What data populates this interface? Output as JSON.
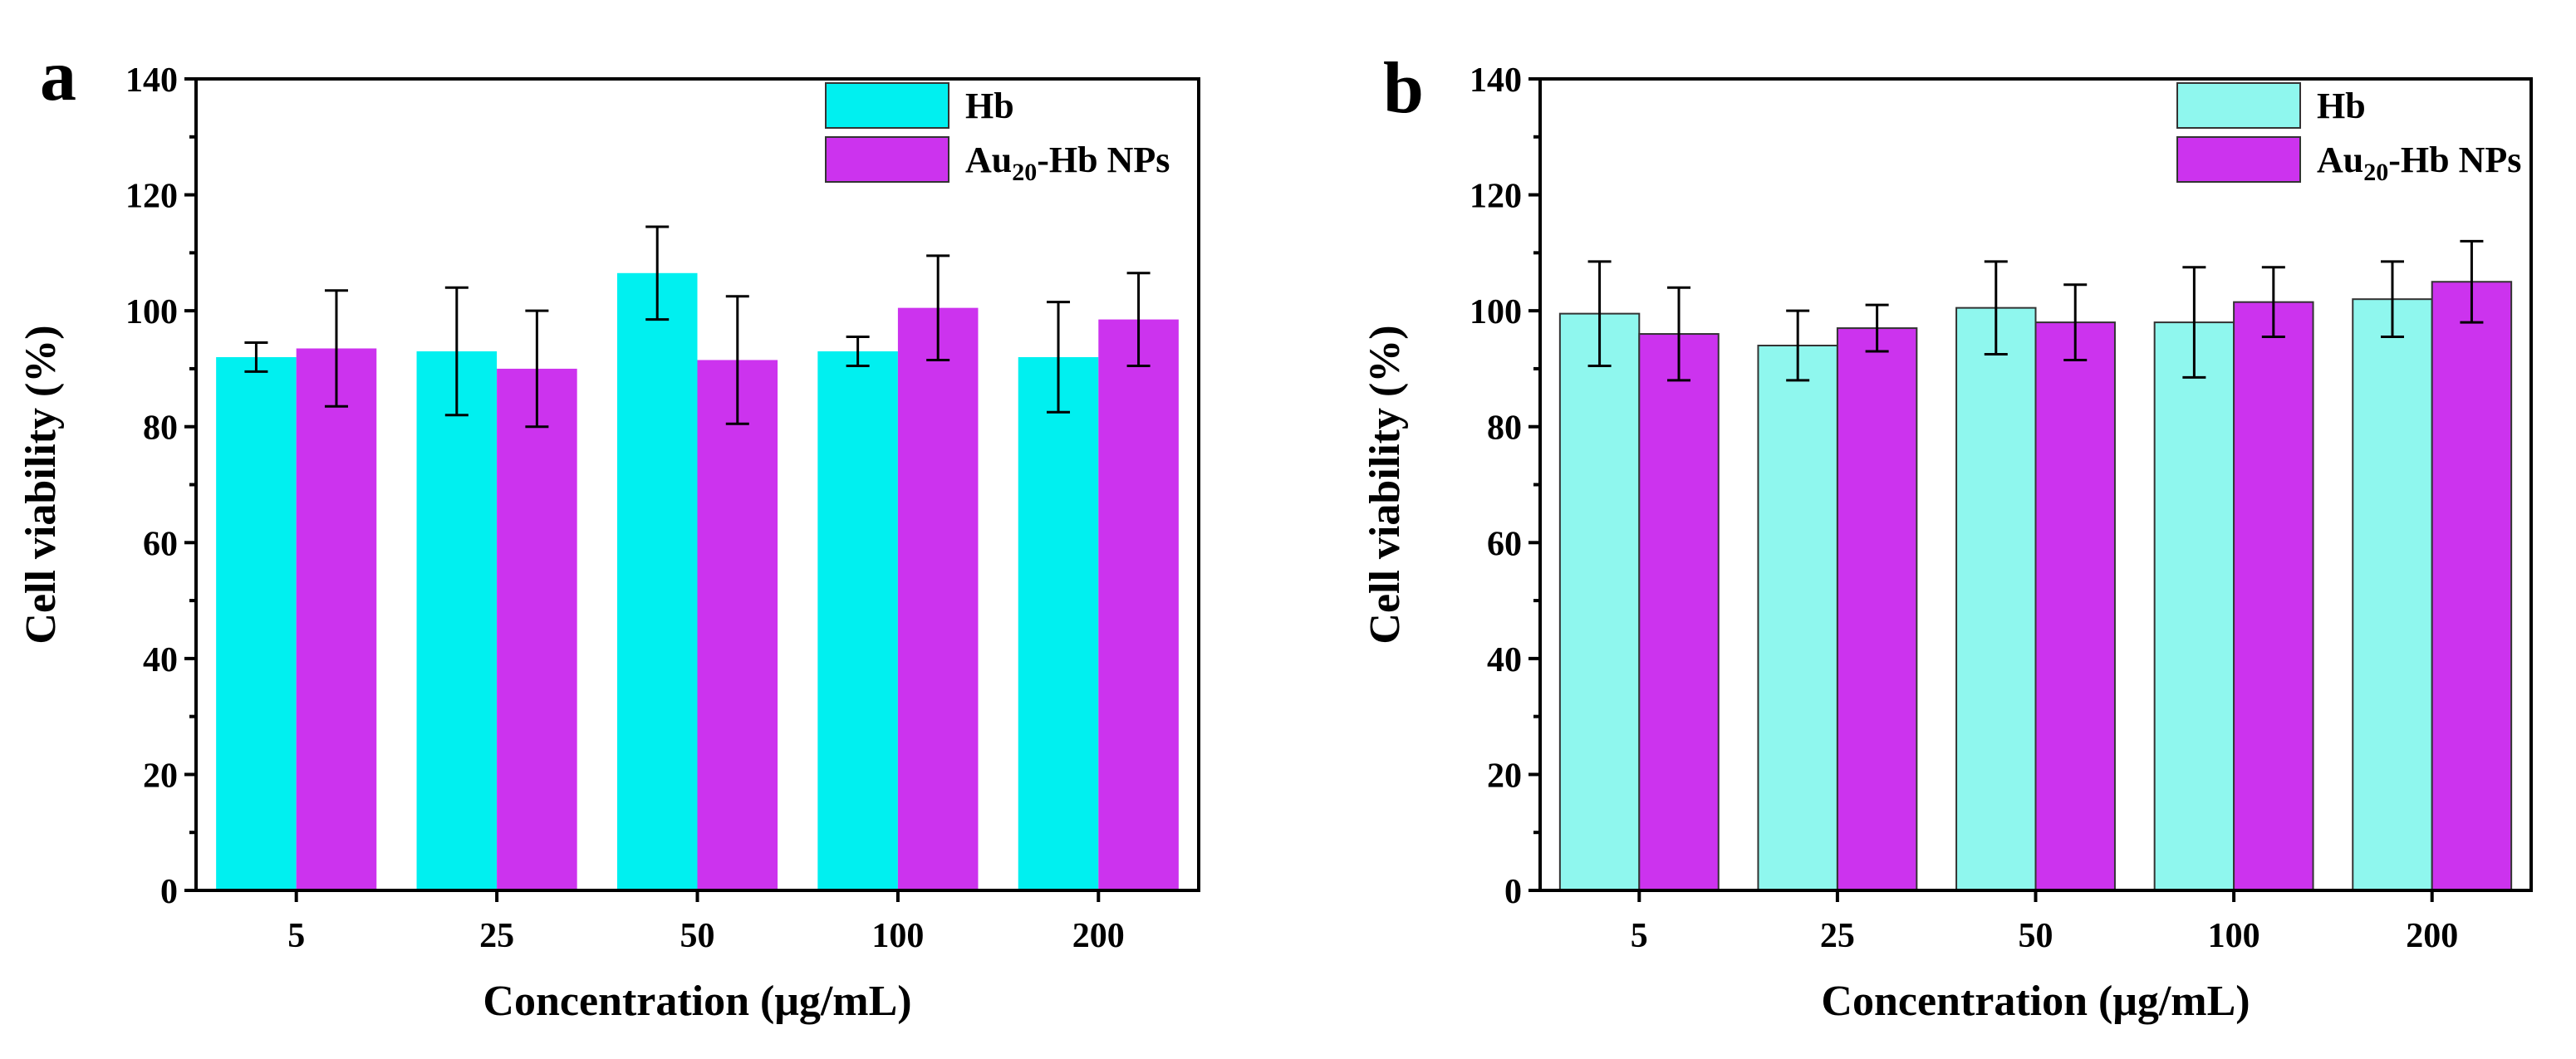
{
  "chart_data": [
    {
      "type": "bar",
      "panel_label": "a",
      "categories": [
        "5",
        "25",
        "50",
        "100",
        "200"
      ],
      "series": [
        {
          "name": "Hb",
          "color": "#00f0f0",
          "values": [
            92,
            93,
            106.5,
            93,
            92
          ],
          "errors": [
            2.5,
            11,
            8,
            2.5,
            9.5
          ]
        },
        {
          "name": "Au20-Hb NPs",
          "legend_main": "Au",
          "legend_sub": "20",
          "legend_rest": "-Hb NPs",
          "color": "#cc33ee",
          "values": [
            93.5,
            90,
            91.5,
            100.5,
            98.5
          ],
          "errors": [
            10,
            10,
            11,
            9,
            8
          ]
        }
      ],
      "ylim": [
        0,
        140
      ],
      "yticks": [
        0,
        20,
        40,
        60,
        80,
        100,
        120,
        140
      ],
      "xlabel": "Concentration (μg/mL)",
      "ylabel": "Cell viability (%)",
      "legend_position": "top-right",
      "bar_outline": false
    },
    {
      "type": "bar",
      "panel_label": "b",
      "categories": [
        "5",
        "25",
        "50",
        "100",
        "200"
      ],
      "series": [
        {
          "name": "Hb",
          "color": "#8ff7ee",
          "values": [
            99.5,
            94,
            100.5,
            98,
            102
          ],
          "errors": [
            9,
            6,
            8,
            9.5,
            6.5
          ]
        },
        {
          "name": "Au20-Hb NPs",
          "legend_main": "Au",
          "legend_sub": "20",
          "legend_rest": "-Hb NPs",
          "color": "#cc33ee",
          "values": [
            96,
            97,
            98,
            101.5,
            105
          ],
          "errors": [
            8,
            4,
            6.5,
            6,
            7
          ]
        }
      ],
      "ylim": [
        0,
        140
      ],
      "yticks": [
        0,
        20,
        40,
        60,
        80,
        100,
        120,
        140
      ],
      "xlabel": "Concentration (μg/mL)",
      "ylabel": "Cell viability (%)",
      "legend_position": "top-right",
      "bar_outline": true
    }
  ]
}
